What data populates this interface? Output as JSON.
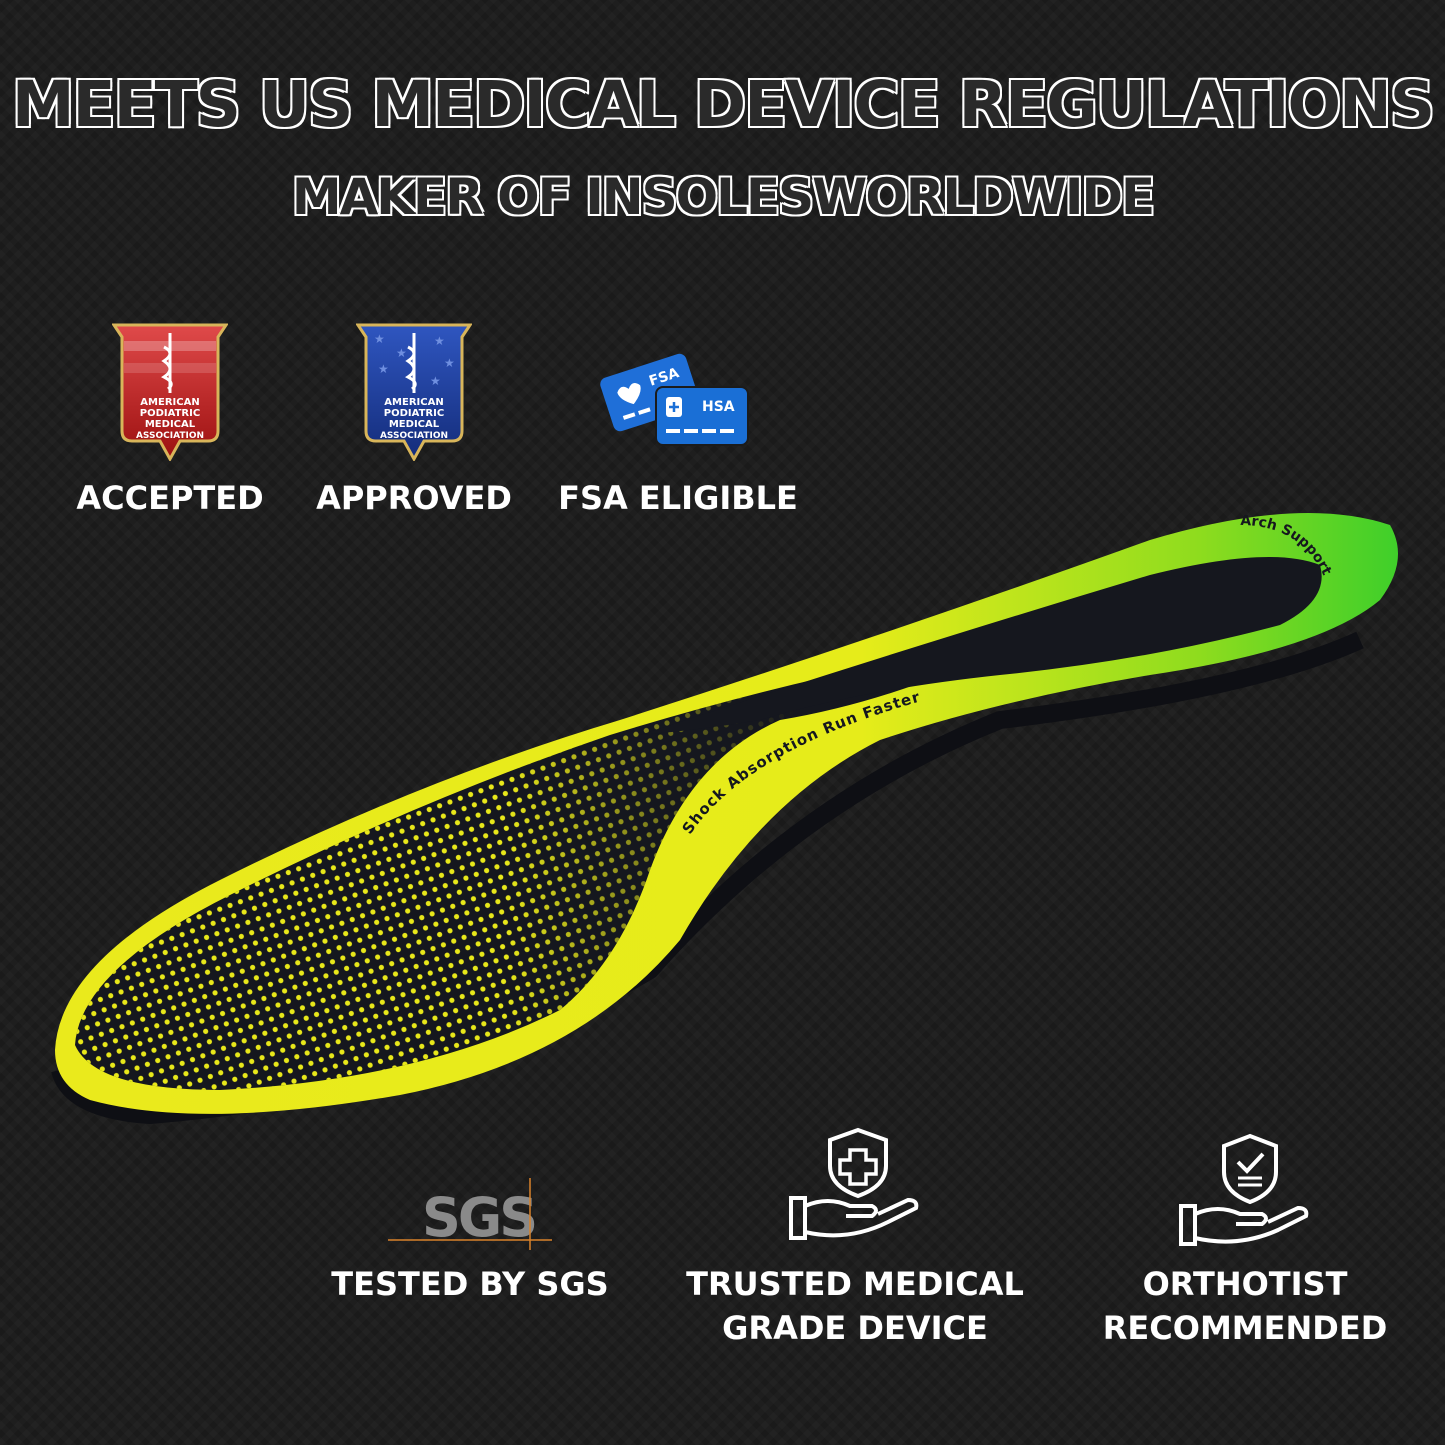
{
  "header": {
    "title": "MEETS US MEDICAL DEVICE REGULATIONS",
    "subtitle": "MAKER OF INSOLESWORLDWIDE"
  },
  "badges": [
    {
      "label": "ACCEPTED",
      "seal_text": "AMERICAN PODIATRIC MEDICAL ASSOCIATION",
      "color": "#b81e1e",
      "icon": "apma-red-shield-icon"
    },
    {
      "label": "APPROVED",
      "seal_text": "AMERICAN PODIATRIC MEDICAL ASSOCIATION",
      "color": "#1e3f9c",
      "icon": "apma-blue-shield-icon"
    },
    {
      "label": "FSA ELIGIBLE",
      "card1": "FSA",
      "card2": "HSA",
      "color": "#1a6fd6",
      "icon": "fsa-hsa-cards-icon"
    }
  ],
  "insole": {
    "print_1": "Shock Absorption Run Faster",
    "print_2": "Arch Support",
    "colors": {
      "yellow": "#e8e81a",
      "green": "#3fcf2a",
      "dark": "#15171e"
    }
  },
  "features": [
    {
      "line1": "TESTED BY SGS",
      "line2": "",
      "logo": "SGS",
      "icon": "sgs-logo-icon"
    },
    {
      "line1": "TRUSTED MEDICAL",
      "line2": "GRADE DEVICE",
      "icon": "hand-shield-plus-icon"
    },
    {
      "line1": "ORTHOTIST",
      "line2": "RECOMMENDED",
      "icon": "hand-shield-check-icon"
    }
  ]
}
